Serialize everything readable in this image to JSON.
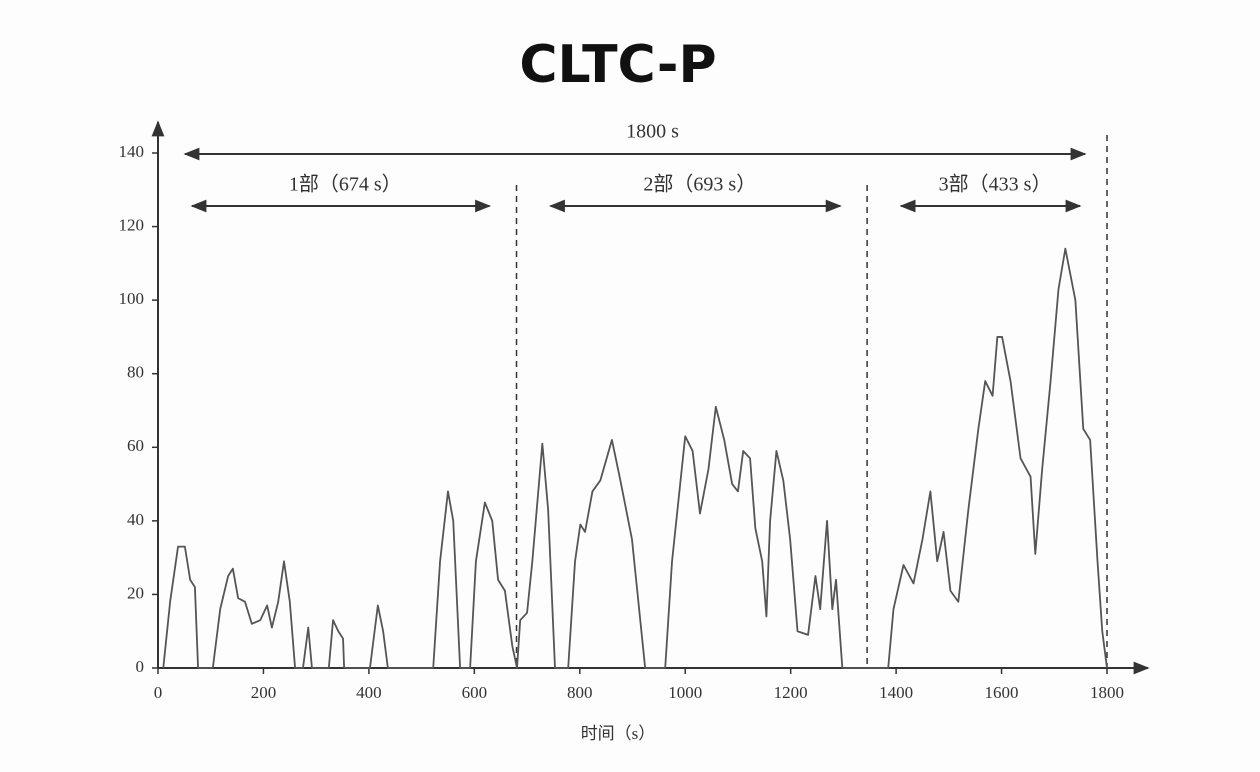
{
  "chart_data": {
    "type": "line",
    "title": "CLTC-P",
    "x_label": "时间（s）",
    "annotations": [
      "1800 s",
      "1部（674 s）",
      "2部（693 s）",
      "3部（433 s）"
    ],
    "boundaries": [
      680,
      1345,
      1800
    ],
    "xlim": [
      0,
      1800
    ],
    "xticks": [
      0,
      200,
      400,
      600,
      800,
      1000,
      1200,
      1400,
      1600,
      1800
    ],
    "ylim": [
      0,
      140
    ],
    "yticks": [
      0,
      20,
      40,
      60,
      80,
      100,
      120,
      140
    ],
    "series": [
      {
        "color": "#555555",
        "x": [
          10,
          23,
          38,
          51,
          61,
          70,
          76,
          104,
          118,
          133,
          142,
          152,
          165,
          178,
          194,
          207,
          216,
          228,
          239,
          250,
          260,
          275,
          285,
          292,
          324,
          332,
          342,
          351,
          353,
          402,
          417,
          427,
          436,
          522,
          535,
          550,
          560,
          573,
          592,
          603,
          620,
          634,
          645,
          658,
          672,
          681,
          687,
          700,
          710,
          729,
          740,
          753,
          778,
          791,
          801,
          810,
          824,
          839,
          861,
          877,
          899,
          924,
          962,
          975,
          1000,
          1014,
          1028,
          1044,
          1058,
          1074,
          1089,
          1100,
          1110,
          1123,
          1133,
          1146,
          1154,
          1161,
          1173,
          1186,
          1199,
          1213,
          1233,
          1247,
          1256,
          1269,
          1279,
          1286,
          1298,
          1385,
          1395,
          1414,
          1433,
          1450,
          1465,
          1478,
          1490,
          1503,
          1518,
          1537,
          1556,
          1569,
          1583,
          1592,
          1601,
          1617,
          1636,
          1655,
          1664,
          1677,
          1693,
          1708,
          1721,
          1740,
          1755,
          1768,
          1782,
          1791,
          1800
        ],
        "values": [
          0,
          18,
          33,
          33,
          24,
          22,
          0,
          0,
          16,
          25,
          27,
          19,
          18,
          12,
          13,
          17,
          11,
          18,
          29,
          18,
          0,
          0,
          11,
          0,
          0,
          13,
          10,
          8,
          0,
          0,
          17,
          10,
          0,
          0,
          29,
          48,
          40,
          0,
          0,
          29,
          45,
          40,
          24,
          21,
          6,
          0,
          13,
          15,
          29,
          61,
          43,
          0,
          0,
          29,
          39,
          37,
          48,
          51,
          62,
          51,
          35,
          0,
          0,
          29,
          63,
          59,
          42,
          54,
          71,
          62,
          50,
          48,
          59,
          57,
          38,
          29,
          14,
          40,
          59,
          51,
          35,
          10,
          9,
          25,
          16,
          40,
          16,
          24,
          0,
          0,
          16,
          28,
          23,
          35,
          48,
          29,
          37,
          21,
          18,
          43,
          65,
          78,
          74,
          90,
          90,
          78,
          57,
          52,
          31,
          54,
          78,
          103,
          114,
          100,
          65,
          62,
          29,
          10,
          0
        ]
      }
    ]
  }
}
